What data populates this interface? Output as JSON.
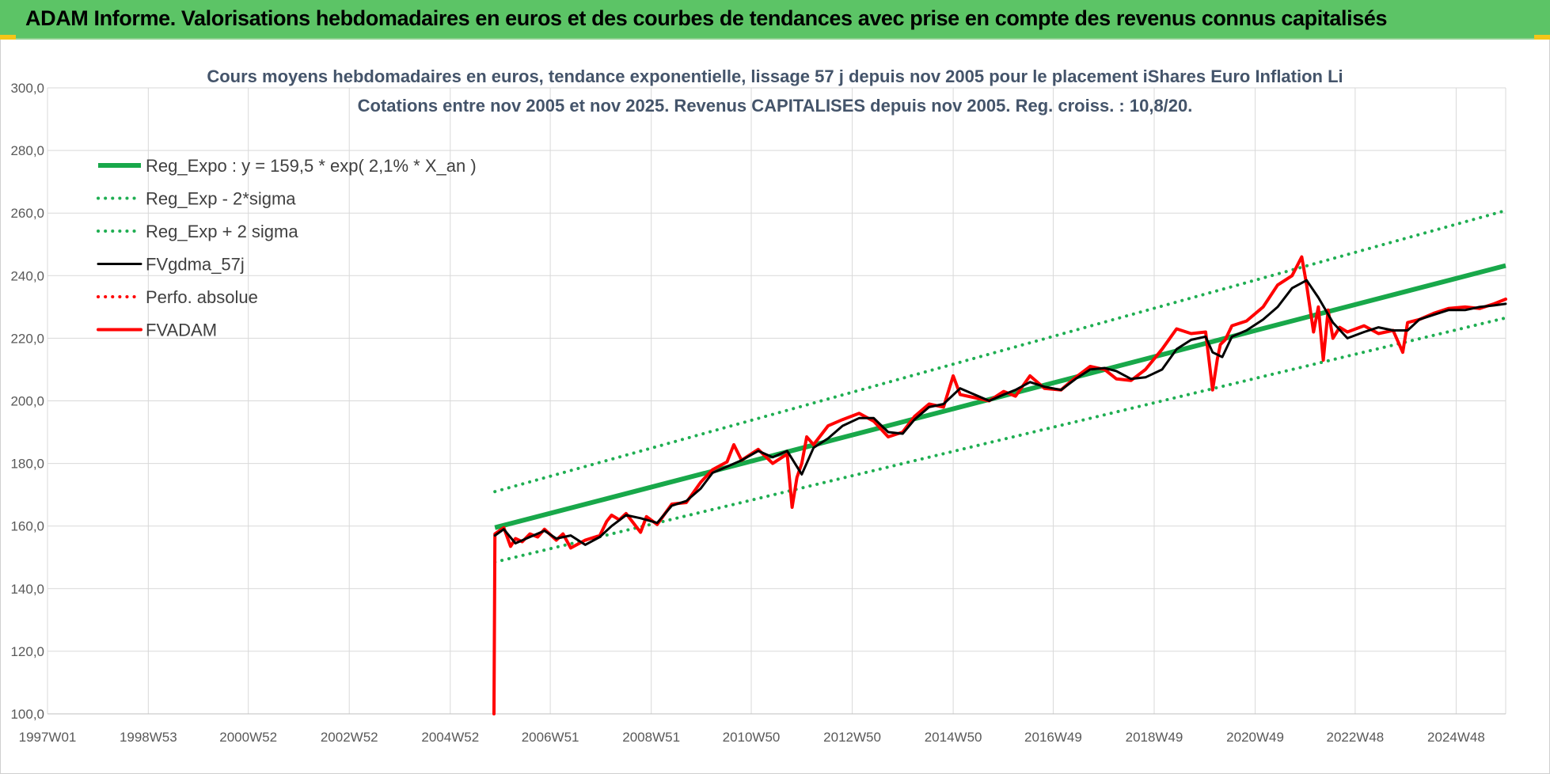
{
  "banner": {
    "title": "ADAM Informe. Valorisations hebdomadaires en euros et des courbes de tendances avec prise en compte des revenus connus capitalisés"
  },
  "colors": {
    "banner_bg": "#5cc466",
    "reg_green": "#18a84a",
    "dotted_green": "#1fae52",
    "black": "#000000",
    "red": "#ff0000",
    "grid": "#d9d9d9",
    "title_text": "#44546a"
  },
  "chart_data": {
    "type": "line",
    "title": "Cours moyens hebdomadaires en euros, tendance exponentielle, lissage 57 j depuis nov 2005 pour le placement iShares Euro Inflation Li",
    "subtitle": "Cotations entre nov 2005 et nov 2025. Revenus CAPITALISES depuis nov 2005. Reg. croiss. : 10,8/20.",
    "x_range": [
      "1997W01",
      "2025W47"
    ],
    "x_tick_labels": [
      "1997W01",
      "1998W53",
      "2000W52",
      "2002W52",
      "2004W52",
      "2006W51",
      "2008W51",
      "2010W50",
      "2012W50",
      "2014W50",
      "2016W49",
      "2018W49",
      "2020W49",
      "2022W48",
      "2024W48"
    ],
    "y_tick_labels": [
      "100,0",
      "120,0",
      "140,0",
      "160,0",
      "180,0",
      "200,0",
      "220,0",
      "240,0",
      "260,0",
      "280,0",
      "300,0"
    ],
    "ylim": [
      100,
      300
    ],
    "grid": true,
    "legend_position": "top-left",
    "series": [
      {
        "name": "Reg_Expo : y = 159,5 * exp( 2,1% *  X_an )",
        "style": "solid",
        "color": "#18a84a",
        "x": [
          "2005W46",
          "2025W47"
        ],
        "y": [
          159.5,
          243.2
        ]
      },
      {
        "name": "Reg_Exp - 2*sigma",
        "style": "dotted",
        "color": "#1fae52",
        "x": [
          "2005W46",
          "2025W47"
        ],
        "y": [
          148.5,
          226.5
        ]
      },
      {
        "name": "Reg_Exp + 2 sigma",
        "style": "dotted",
        "color": "#1fae52",
        "x": [
          "2005W46",
          "2025W47"
        ],
        "y": [
          171.0,
          260.8
        ]
      },
      {
        "name": "FVgdma_57j",
        "style": "solid",
        "color": "#000000",
        "x": [
          "2005W46",
          "2006W03",
          "2006W15",
          "2006W30",
          "2006W45",
          "2007W05",
          "2007W20",
          "2007W35",
          "2007W50",
          "2008W10",
          "2008W25",
          "2008W40",
          "2009W05",
          "2009W20",
          "2009W35",
          "2009W50",
          "2010W10",
          "2010W25",
          "2010W40",
          "2011W05",
          "2011W20",
          "2011W35",
          "2011W50",
          "2012W10",
          "2012W25",
          "2012W40",
          "2013W05",
          "2013W20",
          "2013W35",
          "2013W50",
          "2014W10",
          "2014W25",
          "2014W40",
          "2015W05",
          "2015W20",
          "2015W35",
          "2015W50",
          "2016W10",
          "2016W25",
          "2016W40",
          "2017W05",
          "2017W20",
          "2017W35",
          "2017W50",
          "2018W10",
          "2018W25",
          "2018W40",
          "2019W05",
          "2019W20",
          "2019W35",
          "2019W50",
          "2020W05",
          "2020W15",
          "2020W25",
          "2020W40",
          "2021W05",
          "2021W20",
          "2021W35",
          "2021W50",
          "2022W10",
          "2022W25",
          "2022W40",
          "2023W05",
          "2023W20",
          "2023W35",
          "2023W50",
          "2024W10",
          "2024W25",
          "2024W40",
          "2025W05",
          "2025W20",
          "2025W35",
          "2025W47"
        ],
        "y": [
          157.0,
          159.0,
          154.5,
          156.5,
          158.5,
          156.0,
          157.0,
          154.0,
          156.5,
          160.0,
          163.5,
          162.5,
          161.0,
          166.5,
          168.0,
          172.0,
          177.0,
          179.0,
          181.0,
          184.0,
          182.0,
          184.0,
          176.5,
          185.0,
          188.0,
          192.0,
          194.5,
          194.5,
          190.0,
          189.5,
          194.0,
          198.0,
          199.0,
          204.0,
          202.0,
          200.0,
          202.0,
          203.5,
          206.0,
          204.5,
          203.5,
          207.0,
          210.0,
          210.5,
          209.5,
          207.0,
          207.5,
          210.0,
          216.5,
          219.5,
          220.5,
          215.5,
          214.0,
          220.5,
          222.5,
          226.0,
          230.0,
          236.0,
          238.5,
          233.0,
          225.0,
          220.0,
          222.0,
          223.5,
          222.5,
          222.5,
          226.0,
          227.5,
          229.0,
          229.0,
          230.0,
          230.5,
          231.0
        ]
      },
      {
        "name": "Perfo. absolue",
        "style": "dotted",
        "color": "#ff0000",
        "x": [],
        "y": []
      },
      {
        "name": "FVADAM",
        "style": "solid",
        "color": "#ff0000",
        "x": [
          "2005W45",
          "2005W46",
          "2006W03",
          "2006W10",
          "2006W15",
          "2006W22",
          "2006W30",
          "2006W38",
          "2006W45",
          "2007W05",
          "2007W12",
          "2007W20",
          "2007W35",
          "2007W50",
          "2008W05",
          "2008W10",
          "2008W18",
          "2008W25",
          "2008W40",
          "2008W46",
          "2009W05",
          "2009W20",
          "2009W35",
          "2009W50",
          "2010W10",
          "2010W25",
          "2010W32",
          "2010W40",
          "2011W05",
          "2011W20",
          "2011W35",
          "2011W40",
          "2011W45",
          "2011W50",
          "2012W03",
          "2012W10",
          "2012W25",
          "2012W40",
          "2013W05",
          "2013W20",
          "2013W35",
          "2013W50",
          "2014W10",
          "2014W25",
          "2014W40",
          "2014W50",
          "2015W05",
          "2015W20",
          "2015W35",
          "2015W50",
          "2016W10",
          "2016W25",
          "2016W40",
          "2017W05",
          "2017W20",
          "2017W35",
          "2017W50",
          "2018W10",
          "2018W25",
          "2018W40",
          "2019W05",
          "2019W20",
          "2019W35",
          "2019W50",
          "2020W05",
          "2020W10",
          "2020W13",
          "2020W18",
          "2020W25",
          "2020W40",
          "2021W05",
          "2021W20",
          "2021W35",
          "2021W45",
          "2021W50",
          "2022W05",
          "2022W10",
          "2022W15",
          "2022W20",
          "2022W25",
          "2022W32",
          "2022W40",
          "2023W05",
          "2023W20",
          "2023W35",
          "2023W45",
          "2023W50",
          "2024W10",
          "2024W25",
          "2024W40",
          "2025W05",
          "2025W20",
          "2025W35",
          "2025W47"
        ],
        "y": [
          100.0,
          157.5,
          159.5,
          153.5,
          156.0,
          155.0,
          157.5,
          156.5,
          159.0,
          155.5,
          157.5,
          153.0,
          155.5,
          157.0,
          161.5,
          163.5,
          162.0,
          164.0,
          158.0,
          163.0,
          160.5,
          167.0,
          167.5,
          174.0,
          178.0,
          180.5,
          186.0,
          181.0,
          184.5,
          180.0,
          183.0,
          166.0,
          175.5,
          180.0,
          188.5,
          186.0,
          192.0,
          194.0,
          196.0,
          193.5,
          188.5,
          190.0,
          195.0,
          199.0,
          198.0,
          208.0,
          202.0,
          201.0,
          200.0,
          203.0,
          201.5,
          208.0,
          204.0,
          203.5,
          207.5,
          211.0,
          210.0,
          207.0,
          206.5,
          210.0,
          216.5,
          223.0,
          221.5,
          222.0,
          203.5,
          213.5,
          218.0,
          219.5,
          224.0,
          225.5,
          230.0,
          237.0,
          240.0,
          246.0,
          237.0,
          222.0,
          230.0,
          213.0,
          229.0,
          220.0,
          223.5,
          222.0,
          224.0,
          221.5,
          222.5,
          215.5,
          225.0,
          226.0,
          228.0,
          229.5,
          230.0,
          229.5,
          231.0,
          232.5
        ]
      }
    ]
  }
}
